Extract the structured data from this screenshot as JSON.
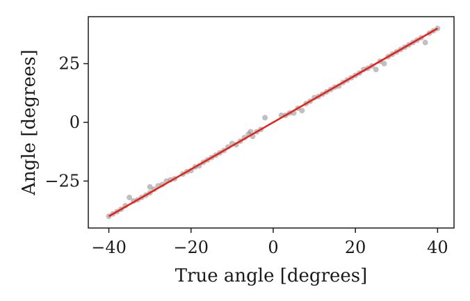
{
  "chart_data": {
    "type": "scatter",
    "xlabel": "True angle [degrees]",
    "ylabel": "Angle [degrees]",
    "xlim": [
      -45,
      44
    ],
    "ylim": [
      -45,
      45
    ],
    "xticks": [
      -40,
      -20,
      0,
      20,
      40
    ],
    "xtick_labels": [
      "−40",
      "−20",
      "0",
      "20",
      "40"
    ],
    "yticks": [
      -25,
      0,
      25
    ],
    "ytick_labels": [
      "−25",
      "0",
      "25"
    ],
    "grid": false,
    "series": [
      {
        "kind": "points",
        "color": "#8c8c8c",
        "x": [
          -40,
          -39,
          -38,
          -37,
          -36,
          -35,
          -34,
          -33,
          -32,
          -31,
          -30,
          -30,
          -29,
          -28,
          -27,
          -26,
          -25,
          -24,
          -22,
          -21,
          -20,
          -19,
          -18,
          -17,
          -16,
          -15,
          -14,
          -13,
          -12,
          -11,
          -10,
          -9,
          -8,
          -7,
          -6,
          -5.5,
          -5,
          -4,
          -3,
          -2,
          2,
          3,
          4,
          5,
          6,
          7,
          8,
          9,
          10,
          11,
          12,
          13,
          14,
          15,
          16,
          17,
          18,
          19,
          20,
          21,
          22,
          23,
          24,
          25,
          26,
          27,
          28,
          29,
          30,
          31,
          32,
          33,
          34,
          35,
          36,
          37,
          38,
          39,
          40
        ],
        "y": [
          -40,
          -39,
          -38,
          -37,
          -35.5,
          -32,
          -33.5,
          -33,
          -32,
          -31,
          -30,
          -27.5,
          -28.5,
          -27,
          -26.5,
          -25,
          -24.5,
          -24,
          -22,
          -21,
          -20.5,
          -19,
          -18.5,
          -17,
          -16,
          -15,
          -14,
          -13,
          -12,
          -10.5,
          -9,
          -9.5,
          -8,
          -6.5,
          -5,
          -4,
          -6,
          -4,
          -3,
          2,
          3,
          3,
          4,
          4,
          6,
          5,
          8,
          9,
          10.5,
          11,
          12,
          13,
          14,
          15,
          15.5,
          17,
          18,
          19,
          20,
          21,
          22.5,
          23,
          24,
          22.5,
          26,
          25,
          28,
          29,
          30,
          31,
          32,
          33,
          34,
          35,
          36,
          34,
          38,
          39,
          40
        ]
      },
      {
        "kind": "line",
        "color": "#e8201a",
        "x": [
          -40,
          40
        ],
        "y": [
          -40,
          40
        ]
      }
    ]
  }
}
